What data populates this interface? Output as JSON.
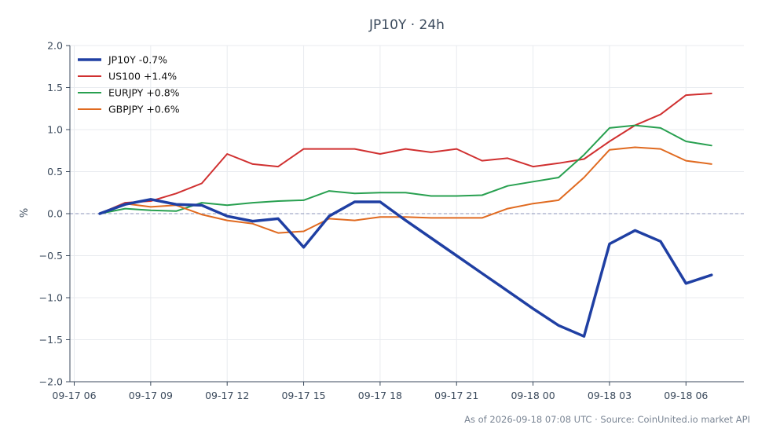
{
  "chart_data": {
    "type": "line",
    "title": "JP10Y · 24h",
    "xlabel": "",
    "ylabel": "%",
    "ylim": [
      -2.0,
      2.0
    ],
    "y_ticks": [
      "2.0",
      "1.5",
      "1.0",
      "0.5",
      "0.0",
      "−0.5",
      "−1.0",
      "−1.5",
      "−2.0"
    ],
    "y_tick_values": [
      2.0,
      1.5,
      1.0,
      0.5,
      0.0,
      -0.5,
      -1.0,
      -1.5,
      -2.0
    ],
    "x_ticks": [
      "09-17 06",
      "09-17 09",
      "09-17 12",
      "09-17 15",
      "09-17 18",
      "09-17 21",
      "09-18 00",
      "09-18 03",
      "09-18 06"
    ],
    "x": [
      "09-17 07",
      "09-17 08",
      "09-17 09",
      "09-17 10",
      "09-17 11",
      "09-17 12",
      "09-17 13",
      "09-17 14",
      "09-17 15",
      "09-17 16",
      "09-17 17",
      "09-17 18",
      "09-17 19",
      "09-17 20",
      "09-17 21",
      "09-17 22",
      "09-17 23",
      "09-18 00",
      "09-18 01",
      "09-18 02",
      "09-18 03",
      "09-18 04",
      "09-18 05",
      "09-18 06",
      "09-18 07"
    ],
    "grid": true,
    "zero_line": true,
    "legend_position": "top-left",
    "series": [
      {
        "name": "JP10Y -0.7%",
        "color": "#1f3fa3",
        "width": 3.5,
        "values": [
          0.0,
          0.11,
          0.17,
          0.11,
          0.1,
          -0.03,
          -0.09,
          -0.06,
          -0.4,
          -0.03,
          0.14,
          0.14,
          -0.08,
          -0.29,
          -0.5,
          -0.71,
          -0.92,
          -1.13,
          -1.33,
          -1.46,
          -0.36,
          -0.2,
          -0.33,
          -0.83,
          -0.73
        ]
      },
      {
        "name": "US100 +1.4%",
        "color": "#d03030",
        "width": 2,
        "values": [
          0.0,
          0.13,
          0.15,
          0.24,
          0.36,
          0.71,
          0.59,
          0.56,
          0.77,
          0.77,
          0.77,
          0.71,
          0.77,
          0.73,
          0.77,
          0.63,
          0.66,
          0.56,
          0.6,
          0.65,
          0.86,
          1.05,
          1.18,
          1.41,
          1.43
        ]
      },
      {
        "name": "EURJPY +0.8%",
        "color": "#28a050",
        "width": 2,
        "values": [
          0.0,
          0.06,
          0.04,
          0.03,
          0.13,
          0.1,
          0.13,
          0.15,
          0.16,
          0.27,
          0.24,
          0.25,
          0.25,
          0.21,
          0.21,
          0.22,
          0.33,
          0.38,
          0.43,
          0.7,
          1.02,
          1.05,
          1.02,
          0.86,
          0.81
        ]
      },
      {
        "name": "GBPJPY +0.6%",
        "color": "#e06a20",
        "width": 2,
        "values": [
          0.0,
          0.12,
          0.08,
          0.1,
          -0.01,
          -0.08,
          -0.12,
          -0.23,
          -0.21,
          -0.06,
          -0.08,
          -0.04,
          -0.04,
          -0.05,
          -0.05,
          -0.05,
          0.06,
          0.12,
          0.16,
          0.43,
          0.76,
          0.79,
          0.77,
          0.63,
          0.59
        ]
      }
    ]
  },
  "footer": "As of 2026-09-18 07:08 UTC · Source: CoinUnited.io market API"
}
